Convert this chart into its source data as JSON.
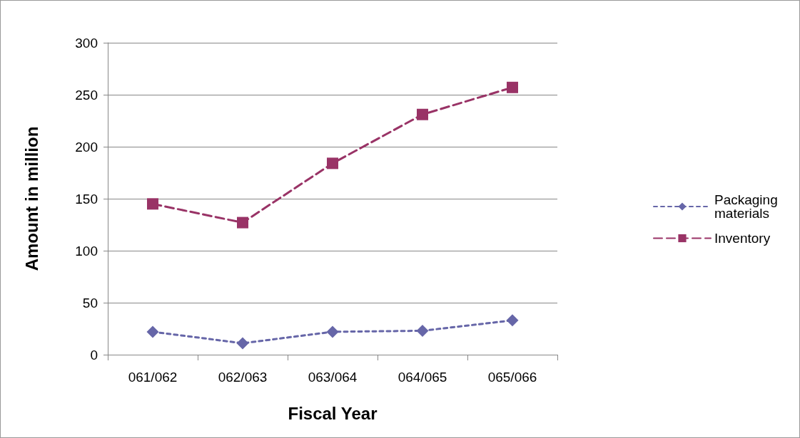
{
  "chart_data": {
    "type": "line",
    "xlabel": "Fiscal Year",
    "ylabel": "Amount in million",
    "categories": [
      "061/062",
      "062/063",
      "063/064",
      "064/065",
      "065/066"
    ],
    "series": [
      {
        "name": "Packaging materials",
        "color": "#6666a8",
        "values": [
          22,
          11,
          22,
          23,
          33
        ],
        "marker": "diamond",
        "line_style": "dotted"
      },
      {
        "name": "Inventory",
        "color": "#993366",
        "values": [
          145,
          127,
          184,
          231,
          257
        ],
        "marker": "square",
        "line_style": "dashed"
      }
    ],
    "ylim": [
      0,
      300
    ],
    "yticks": [
      0,
      50,
      100,
      150,
      200,
      250,
      300
    ],
    "grid": "y",
    "legend": "right"
  }
}
